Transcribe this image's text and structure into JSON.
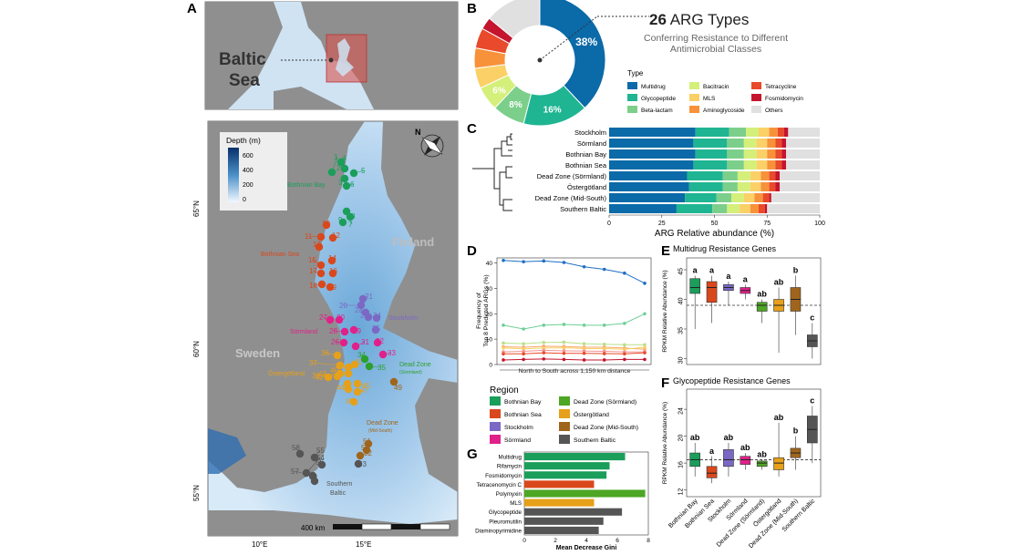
{
  "panels": {
    "a": "A",
    "b": "B",
    "c": "C",
    "d": "D",
    "e": "E",
    "f": "F",
    "g": "G"
  },
  "colors": {
    "sea": "#cfe3f3",
    "land": "#8f8f8f",
    "deep": "#08306b",
    "shallow": "#f2f8ff",
    "box": "#d9534f"
  },
  "map_a": {
    "baltic": "Baltic",
    "sea": "Sea"
  },
  "map": {
    "legend_title": "Depth (m)",
    "legend_ticks": [
      "600",
      "400",
      "200",
      "0"
    ],
    "lat_labels": [
      "65°N",
      "60°N",
      "55°N"
    ],
    "lon_labels": [
      "10°E",
      "15°E"
    ],
    "country_finland": "Finland",
    "country_sweden": "Sweden",
    "scale": "400 km",
    "compass": "N",
    "region_labels": [
      {
        "text": "Bothnian Bay",
        "color": "#1a9e5a"
      },
      {
        "text": "Bothnian Sea",
        "color": "#d9481c"
      },
      {
        "text": "Stockholm",
        "color": "#7b68c4"
      },
      {
        "text": "Sörmland",
        "color": "#e0218a"
      },
      {
        "text": "Östergötland",
        "color": "#e6a019"
      },
      {
        "text": "Dead Zone",
        "color": "#2ca02c"
      },
      {
        "text": "(Sörmland)",
        "color": "#2ca02c"
      },
      {
        "text": "Dead Zone",
        "color": "#a0651c"
      },
      {
        "text": "(Mid-South)",
        "color": "#a0651c"
      },
      {
        "text": "Southern",
        "color": "#555555"
      },
      {
        "text": "Baltic",
        "color": "#555555"
      }
    ],
    "stations": [
      {
        "n": "1",
        "c": "#1a9e5a"
      },
      {
        "n": "2",
        "c": "#1a9e5a"
      },
      {
        "n": "3",
        "c": "#1a9e5a"
      },
      {
        "n": "4",
        "c": "#1a9e5a"
      },
      {
        "n": "5",
        "c": "#1a9e5a"
      },
      {
        "n": "6",
        "c": "#1a9e5a"
      },
      {
        "n": "7",
        "c": "#1a9e5a"
      },
      {
        "n": "8",
        "c": "#1a9e5a"
      },
      {
        "n": "9",
        "c": "#1a9e5a"
      },
      {
        "n": "10",
        "c": "#d9481c"
      },
      {
        "n": "11",
        "c": "#d9481c"
      },
      {
        "n": "12",
        "c": "#d9481c"
      },
      {
        "n": "13",
        "c": "#d9481c"
      },
      {
        "n": "14",
        "c": "#d9481c"
      },
      {
        "n": "15",
        "c": "#d9481c"
      },
      {
        "n": "16",
        "c": "#d9481c"
      },
      {
        "n": "17",
        "c": "#d9481c"
      },
      {
        "n": "18",
        "c": "#d9481c"
      },
      {
        "n": "19",
        "c": "#d9481c"
      },
      {
        "n": "20",
        "c": "#7b68c4"
      },
      {
        "n": "21",
        "c": "#7b68c4"
      },
      {
        "n": "22",
        "c": "#7b68c4"
      },
      {
        "n": "23",
        "c": "#7b68c4"
      },
      {
        "n": "24",
        "c": "#7b68c4"
      },
      {
        "n": "25",
        "c": "#7b68c4"
      },
      {
        "n": "26",
        "c": "#e0218a"
      },
      {
        "n": "27",
        "c": "#e0218a"
      },
      {
        "n": "28",
        "c": "#e0218a"
      },
      {
        "n": "29",
        "c": "#e0218a"
      },
      {
        "n": "30",
        "c": "#e0218a"
      },
      {
        "n": "31",
        "c": "#e0218a"
      },
      {
        "n": "32",
        "c": "#e0218a"
      },
      {
        "n": "33",
        "c": "#e0218a"
      },
      {
        "n": "34",
        "c": "#2ca02c"
      },
      {
        "n": "35",
        "c": "#2ca02c"
      },
      {
        "n": "36",
        "c": "#e6a019"
      },
      {
        "n": "37",
        "c": "#e6a019"
      },
      {
        "n": "38",
        "c": "#e6a019"
      },
      {
        "n": "39",
        "c": "#e6a019"
      },
      {
        "n": "40",
        "c": "#e6a019"
      },
      {
        "n": "41",
        "c": "#e6a019"
      },
      {
        "n": "42",
        "c": "#e6a019"
      },
      {
        "n": "43",
        "c": "#e6a019"
      },
      {
        "n": "44",
        "c": "#e6a019"
      },
      {
        "n": "45",
        "c": "#e6a019"
      },
      {
        "n": "46",
        "c": "#e6a019"
      },
      {
        "n": "47",
        "c": "#e6a019"
      },
      {
        "n": "48",
        "c": "#e6a019"
      },
      {
        "n": "49",
        "c": "#a0651c"
      },
      {
        "n": "50",
        "c": "#a0651c"
      },
      {
        "n": "51",
        "c": "#a0651c"
      },
      {
        "n": "52",
        "c": "#a0651c"
      },
      {
        "n": "53",
        "c": "#555555"
      },
      {
        "n": "54",
        "c": "#555555"
      },
      {
        "n": "55",
        "c": "#555555"
      },
      {
        "n": "56",
        "c": "#555555"
      },
      {
        "n": "57",
        "c": "#555555"
      },
      {
        "n": "58",
        "c": "#555555"
      },
      {
        "n": "59",
        "c": "#555555"
      }
    ]
  },
  "chart_data": [
    {
      "panel": "B",
      "type": "pie",
      "title_num": "26",
      "title_rest": " ARG Types",
      "subtitle1": "Conferring Resistance to Different",
      "subtitle2": "Antimicrobial Classes",
      "legend_title": "Type",
      "categories": [
        "Multidrug",
        "Glycopeptide",
        "Beta-lactam",
        "Bacitracin",
        "MLS",
        "Aminoglycoside",
        "Tetracycline",
        "Fosmidomycin",
        "Others"
      ],
      "colors": [
        "#0b6aa8",
        "#1fb592",
        "#7ccf8a",
        "#d4ef7a",
        "#fbd067",
        "#f7923a",
        "#e84a2b",
        "#c4142e",
        "#e0e0e0"
      ],
      "values": [
        38,
        16,
        8,
        6,
        5,
        5,
        5,
        3,
        14
      ],
      "data_labels": [
        "38%",
        "16%",
        "8%",
        "6%",
        "",
        "",
        "",
        "",
        ""
      ]
    },
    {
      "panel": "C",
      "type": "bar",
      "orientation": "horizontal",
      "stacked": true,
      "categories": [
        "Stockholm",
        "Sörmland",
        "Bothnian Bay",
        "Bothnian Sea",
        "Dead Zone (Sörmland)",
        "Östergötland",
        "Dead Zone (Mid-South)",
        "Southern Baltic"
      ],
      "series": [
        {
          "name": "Multidrug",
          "values": [
            41,
            40,
            41,
            40,
            37,
            38,
            36,
            32
          ]
        },
        {
          "name": "Glycopeptide",
          "values": [
            16,
            16,
            15,
            16,
            17,
            16,
            15,
            17
          ]
        },
        {
          "name": "Beta-lactam",
          "values": [
            8,
            8,
            8,
            8,
            7,
            7,
            7,
            7
          ]
        },
        {
          "name": "Bacitracin",
          "values": [
            6,
            6,
            6,
            6,
            6,
            6,
            6,
            6
          ]
        },
        {
          "name": "MLS",
          "values": [
            5,
            5,
            5,
            5,
            5,
            5,
            5,
            5
          ]
        },
        {
          "name": "Aminoglycoside",
          "values": [
            4,
            4,
            4,
            4,
            4,
            4,
            4,
            4
          ]
        },
        {
          "name": "Tetracycline",
          "values": [
            3,
            3,
            3,
            3,
            3,
            3,
            3,
            3
          ]
        },
        {
          "name": "Fosmidomycin",
          "values": [
            2,
            2,
            2,
            2,
            2,
            2,
            1,
            1
          ]
        },
        {
          "name": "Others",
          "values": [
            15,
            16,
            16,
            16,
            19,
            19,
            23,
            25
          ]
        }
      ],
      "xlabel": "ARG Relative abundance (%)",
      "xlim": [
        0,
        100
      ],
      "xticks": [
        "0",
        "25",
        "50",
        "75",
        "100"
      ]
    },
    {
      "panel": "D",
      "type": "line",
      "ylabel1": "Frequency of",
      "ylabel2": "Top 8 Predicted ARGs (%)",
      "xlabel": "North to South across 1,150 km distance",
      "ylim": [
        0,
        42
      ],
      "yticks": [
        "0",
        "10",
        "20",
        "30",
        "40"
      ],
      "x": [
        1,
        2,
        3,
        4,
        5,
        6,
        7,
        8
      ],
      "series": [
        {
          "color": "#1f6fc4",
          "values": [
            41,
            40.5,
            40.8,
            40.2,
            38.5,
            37.5,
            36,
            32
          ]
        },
        {
          "color": "#6fcf97",
          "values": [
            15.5,
            14,
            15.5,
            15.8,
            15.5,
            15.5,
            16.2,
            20
          ]
        },
        {
          "color": "#b8e08a",
          "values": [
            8.5,
            8.2,
            8.7,
            8.8,
            8.2,
            8,
            7.8,
            7.8
          ]
        },
        {
          "color": "#f6a868",
          "values": [
            7,
            6.8,
            7.2,
            7.1,
            6.8,
            6.8,
            6.5,
            6
          ]
        },
        {
          "color": "#fbd067",
          "values": [
            6.5,
            6.2,
            6.5,
            6.6,
            6.3,
            6.3,
            6,
            6.8
          ]
        },
        {
          "color": "#f29494",
          "values": [
            5,
            5.2,
            5.6,
            5.4,
            5.3,
            5.2,
            5,
            5
          ]
        },
        {
          "color": "#e84a2b",
          "values": [
            4.2,
            4.2,
            4.6,
            4.4,
            4.4,
            4.3,
            4.2,
            4.6
          ]
        },
        {
          "color": "#c4142e",
          "values": [
            1.8,
            2,
            2.2,
            2,
            1.8,
            1.8,
            2,
            2
          ]
        }
      ]
    },
    {
      "panel": "E",
      "type": "box",
      "title": "Multidrug Resistance Genes",
      "ylabel": "RPKM Relative Abundance (%)",
      "ylim": [
        29,
        47
      ],
      "yticks": [
        "30",
        "35",
        "40",
        "45"
      ],
      "ref_line": 39,
      "groups": [
        "Bothnian Bay",
        "Bothnian Sea",
        "Stockholm",
        "Sörmland",
        "Dead Zone (Sörmland)",
        "Östergötland",
        "Dead Zone (Mid-South)",
        "Southern Baltic"
      ],
      "colors": [
        "#1a9e5a",
        "#d9481c",
        "#7b68c4",
        "#e0218a",
        "#4da624",
        "#e6a019",
        "#a0651c",
        "#555555"
      ],
      "boxes": [
        [
          35,
          41,
          42,
          43.5,
          44
        ],
        [
          36,
          39.5,
          42,
          43,
          44
        ],
        [
          39,
          41.5,
          42,
          42.5,
          43
        ],
        [
          40,
          41,
          41.5,
          42,
          42.5
        ],
        [
          36,
          38,
          39,
          39.5,
          40
        ],
        [
          31,
          38,
          39,
          40,
          42
        ],
        [
          34,
          38,
          40,
          42,
          44
        ],
        [
          30,
          32,
          33,
          34,
          36
        ]
      ],
      "letters": [
        "a",
        "a",
        "a",
        "a",
        "ab",
        "ab",
        "b",
        "c"
      ]
    },
    {
      "panel": "F",
      "type": "box",
      "title": "Glycopeptide Resistance Genes",
      "ylabel": "RPKM Relative Abundance (%)",
      "ylim": [
        11,
        27
      ],
      "yticks": [
        "12",
        "16",
        "20",
        "24"
      ],
      "ref_line": 16.5,
      "groups": [
        "Bothnian Bay",
        "Bothnian Sea",
        "Stockholm",
        "Sörmland",
        "Dead Zone (Sörmland)",
        "Östergötland",
        "Dead Zone (Mid-South)",
        "Southern Baltic"
      ],
      "colors": [
        "#1a9e5a",
        "#d9481c",
        "#7b68c4",
        "#e0218a",
        "#4da624",
        "#e6a019",
        "#a0651c",
        "#555555"
      ],
      "boxes": [
        [
          14,
          15.5,
          16.5,
          17.5,
          19
        ],
        [
          13,
          13.8,
          14.5,
          15.5,
          17
        ],
        [
          14,
          15.5,
          16.5,
          18,
          19
        ],
        [
          15,
          15.8,
          16.5,
          17,
          17.5
        ],
        [
          15,
          15.5,
          16,
          16.3,
          16.5
        ],
        [
          14,
          15,
          16,
          16.8,
          22
        ],
        [
          15,
          16.8,
          17.5,
          18.2,
          20
        ],
        [
          16,
          19,
          21,
          23,
          24.5
        ]
      ],
      "letters": [
        "ab",
        "a",
        "ab",
        "ab",
        "ab",
        "ab",
        "b",
        "c"
      ]
    },
    {
      "panel": "G",
      "type": "bar",
      "orientation": "horizontal",
      "categories": [
        "Multidrug",
        "Rifamycin",
        "Fosmidomycin",
        "Tetracenomycin C",
        "Polymyxin",
        "MLS",
        "Glycopeptide",
        "Pleuromutilin",
        "Diaminopyrimidine"
      ],
      "values": [
        6.5,
        5.5,
        5.3,
        4.5,
        7.8,
        4.5,
        6.3,
        5.1,
        4.8
      ],
      "colors": [
        "#1a9e5a",
        "#1a9e5a",
        "#1a9e5a",
        "#d9481c",
        "#4da624",
        "#e6a019",
        "#555555",
        "#555555",
        "#555555"
      ],
      "xlabel": "Mean Decrease Gini",
      "xlim": [
        0,
        8
      ],
      "xticks": [
        "0",
        "2",
        "4",
        "6",
        "8"
      ]
    }
  ],
  "region_legend": {
    "title": "Region",
    "items": [
      {
        "label": "Bothnian Bay",
        "color": "#1a9e5a"
      },
      {
        "label": "Bothnian Sea",
        "color": "#d9481c"
      },
      {
        "label": "Stockholm",
        "color": "#7b68c4"
      },
      {
        "label": "Sörmland",
        "color": "#e0218a"
      },
      {
        "label": "Dead Zone (Sörmland)",
        "color": "#4da624"
      },
      {
        "label": "Östergötland",
        "color": "#e6a019"
      },
      {
        "label": "Dead Zone (Mid-South)",
        "color": "#a0651c"
      },
      {
        "label": "Southern Baltic",
        "color": "#555555"
      }
    ]
  }
}
